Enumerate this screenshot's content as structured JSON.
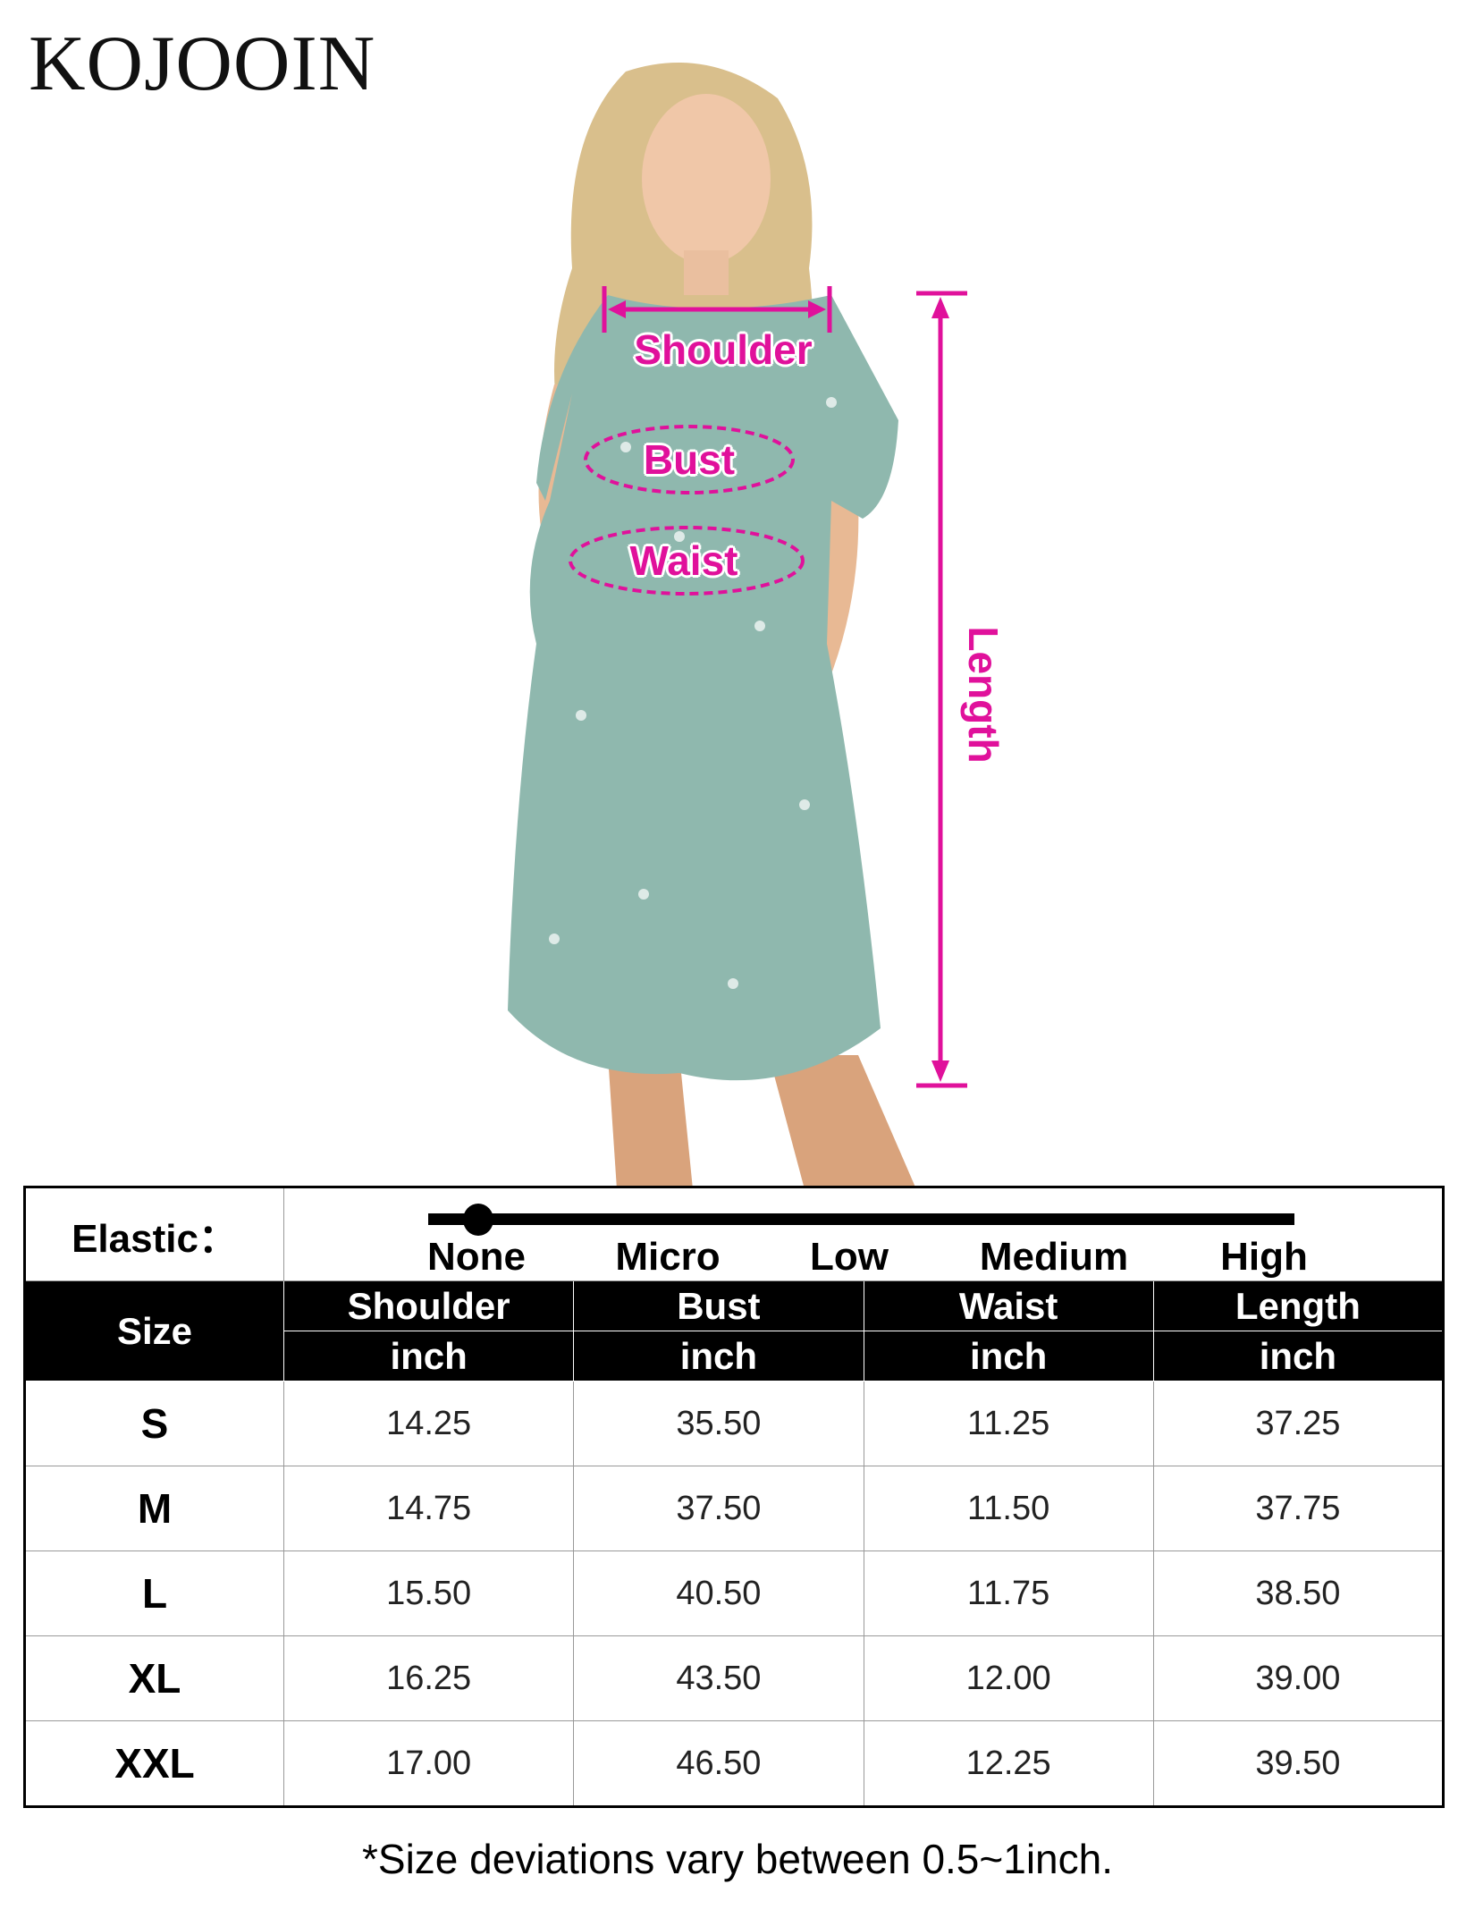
{
  "brand": "KOJOOIN",
  "measure_labels": {
    "shoulder": "Shoulder",
    "bust": "Bust",
    "waist": "Waist",
    "length": "Length"
  },
  "colors": {
    "measure": "#e0119b",
    "dress": "#8fb8ae",
    "header_bg": "#000000"
  },
  "elastic": {
    "label": "Elastic：",
    "levels": [
      "None",
      "Micro",
      "Low",
      "Medium",
      "High"
    ],
    "selected": "None",
    "selected_fraction": 0
  },
  "table": {
    "size_header": "Size",
    "columns": [
      {
        "name": "Shoulder",
        "unit": "inch"
      },
      {
        "name": "Bust",
        "unit": "inch"
      },
      {
        "name": "Waist",
        "unit": "inch"
      },
      {
        "name": "Length",
        "unit": "inch"
      }
    ],
    "rows": [
      {
        "size": "S",
        "values": [
          "14.25",
          "35.50",
          "11.25",
          "37.25"
        ]
      },
      {
        "size": "M",
        "values": [
          "14.75",
          "37.50",
          "11.50",
          "37.75"
        ]
      },
      {
        "size": "L",
        "values": [
          "15.50",
          "40.50",
          "11.75",
          "38.50"
        ]
      },
      {
        "size": "XL",
        "values": [
          "16.25",
          "43.50",
          "12.00",
          "39.00"
        ]
      },
      {
        "size": "XXL",
        "values": [
          "17.00",
          "46.50",
          "12.25",
          "39.50"
        ]
      }
    ]
  },
  "footnote": "*Size deviations vary between 0.5~1inch."
}
